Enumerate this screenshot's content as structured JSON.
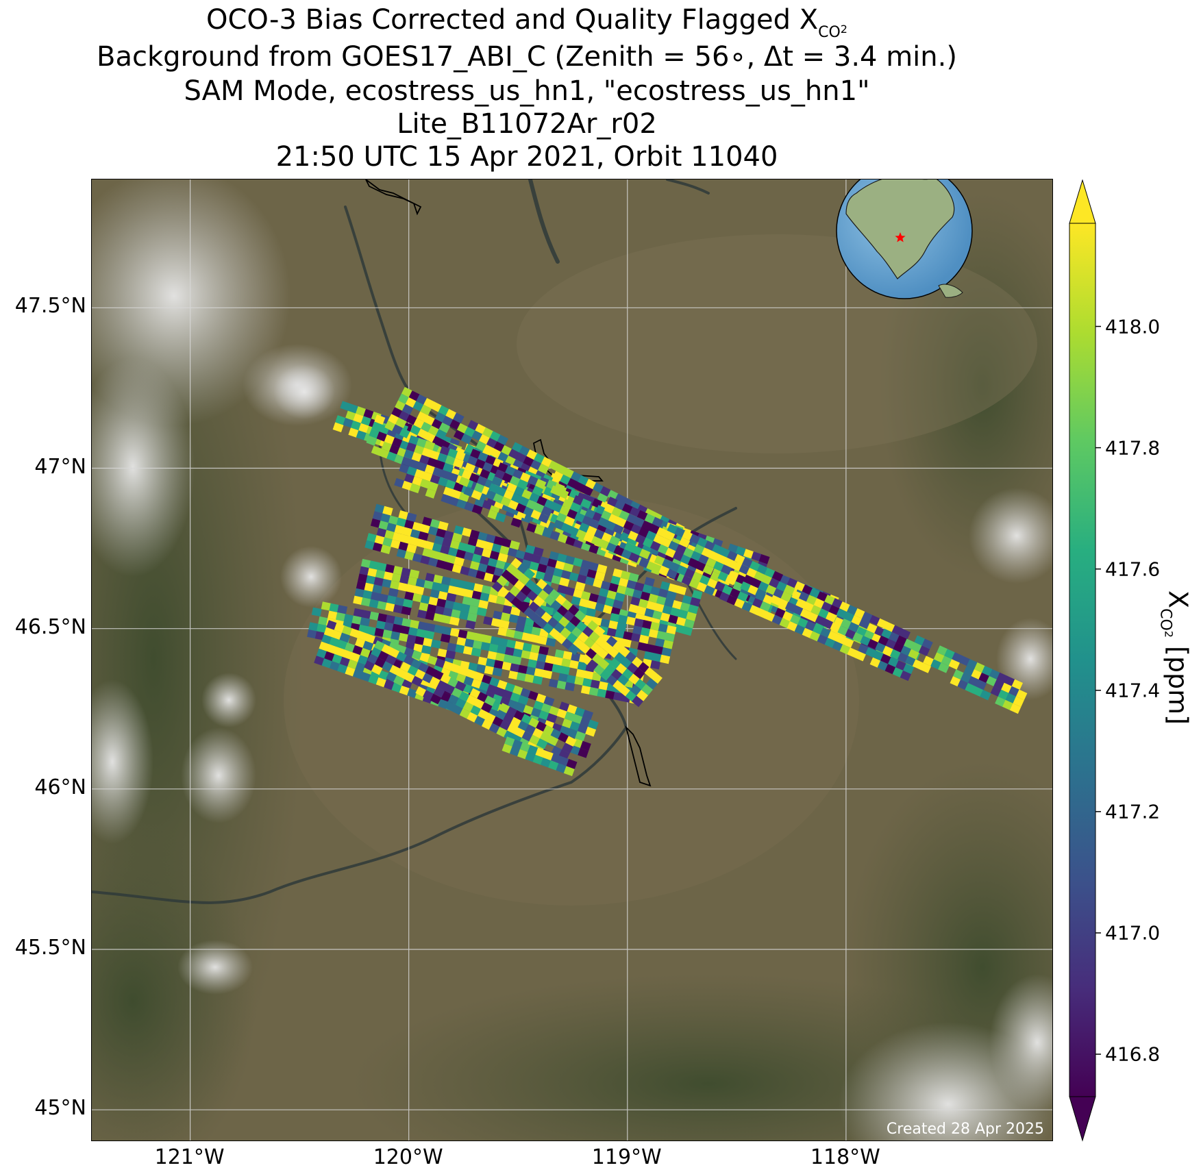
{
  "title": {
    "line1_prefix": "OCO-3 Bias Corrected and Quality Flagged X",
    "line1_sub": "CO",
    "line1_subsub": "2",
    "line2": "Background from GOES17_ABI_C (Zenith = 56∘, Δt =  3.4 min.)",
    "line3": "SAM Mode, ecostress_us_hn1, \"ecostress_us_hn1\"",
    "line4": "Lite_B11072Ar_r02",
    "line5": "21:50 UTC 15 Apr 2021, Orbit 11040"
  },
  "map": {
    "lon_range": [
      -121.45,
      -117.05
    ],
    "lat_range": [
      44.9,
      47.9
    ],
    "lat_ticks": [
      {
        "value": 47.5,
        "label": "47.5°N"
      },
      {
        "value": 47.0,
        "label": "47°N"
      },
      {
        "value": 46.5,
        "label": "46.5°N"
      },
      {
        "value": 46.0,
        "label": "46°N"
      },
      {
        "value": 45.5,
        "label": "45.5°N"
      },
      {
        "value": 45.0,
        "label": "45°N"
      }
    ],
    "lon_ticks": [
      {
        "value": -121,
        "label": "121°W"
      },
      {
        "value": -120,
        "label": "120°W"
      },
      {
        "value": -119,
        "label": "119°W"
      },
      {
        "value": -118,
        "label": "118°W"
      }
    ],
    "background_color": "#6d6548",
    "credit": "Created 28 Apr 2025",
    "inset_globe": {
      "icon": "globe-locator-icon",
      "marker": "red-star",
      "marker_color": "#ff0000"
    }
  },
  "colorbar": {
    "label_prefix": "X",
    "label_sub": "CO",
    "label_subsub": "2",
    "label_suffix": " [ppm]",
    "min": 416.73,
    "max": 418.17,
    "ticks": [
      {
        "value": 418.0,
        "label": "418.0"
      },
      {
        "value": 417.8,
        "label": "417.8"
      },
      {
        "value": 417.6,
        "label": "417.6"
      },
      {
        "value": 417.4,
        "label": "417.4"
      },
      {
        "value": 417.2,
        "label": "417.2"
      },
      {
        "value": 417.0,
        "label": "417.0"
      },
      {
        "value": 416.8,
        "label": "416.8"
      }
    ],
    "colormap": [
      "#440154",
      "#472d7b",
      "#3b528b",
      "#2c728e",
      "#21918c",
      "#28ae80",
      "#5ec962",
      "#addc30",
      "#fde725"
    ]
  }
}
